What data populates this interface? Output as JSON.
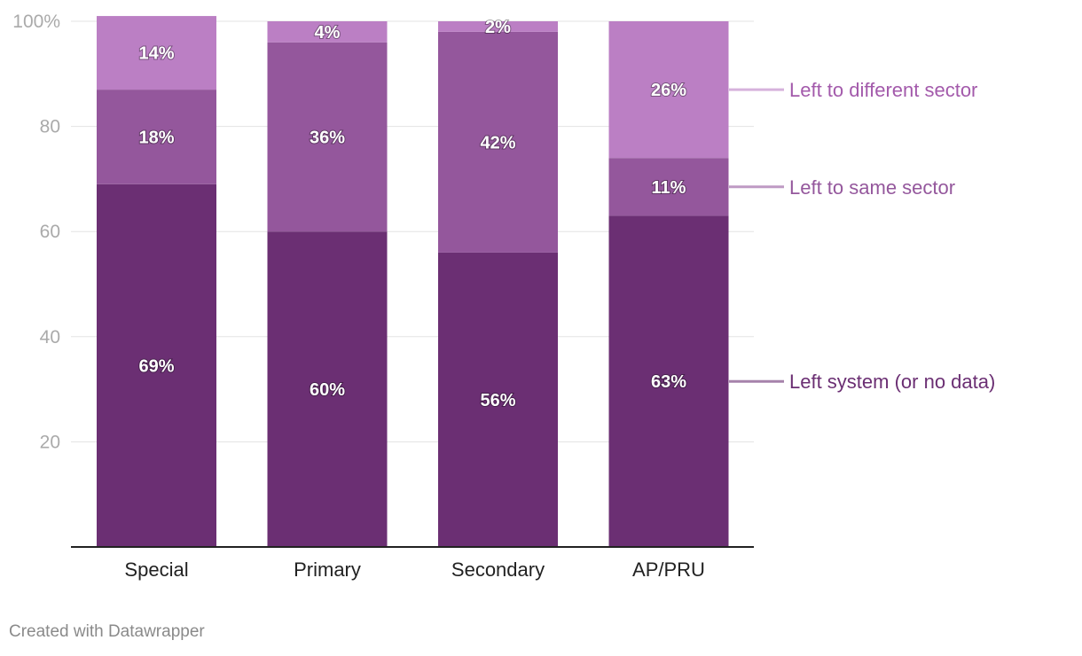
{
  "chart_data": {
    "type": "bar",
    "stacked": true,
    "categories": [
      "Special",
      "Primary",
      "Secondary",
      "AP/PRU"
    ],
    "series": [
      {
        "name": "Left system (or no data)",
        "values": [
          69,
          60,
          56,
          63
        ],
        "labels": [
          "69%",
          "60%",
          "56%",
          "63%"
        ],
        "color": "#6b2f73"
      },
      {
        "name": "Left to same sector",
        "values": [
          18,
          36,
          42,
          11
        ],
        "labels": [
          "18%",
          "36%",
          "42%",
          "11%"
        ],
        "color": "#94579c"
      },
      {
        "name": "Left to different sector",
        "values": [
          14,
          4,
          2,
          26
        ],
        "labels": [
          "14%",
          "4%",
          "2%",
          "26%"
        ],
        "color": "#bb7fc4"
      }
    ],
    "yticks": [
      {
        "value": 100,
        "label": "100%"
      },
      {
        "value": 80,
        "label": "80"
      },
      {
        "value": 60,
        "label": "60"
      },
      {
        "value": 40,
        "label": "40"
      },
      {
        "value": 20,
        "label": "20"
      }
    ],
    "ylim": [
      0,
      100
    ],
    "grid": true,
    "legend": "right, direct labels",
    "legend_colors": [
      "#6b2f73",
      "#94579c",
      "#a35aab"
    ]
  },
  "credit": "Created with Datawrapper"
}
